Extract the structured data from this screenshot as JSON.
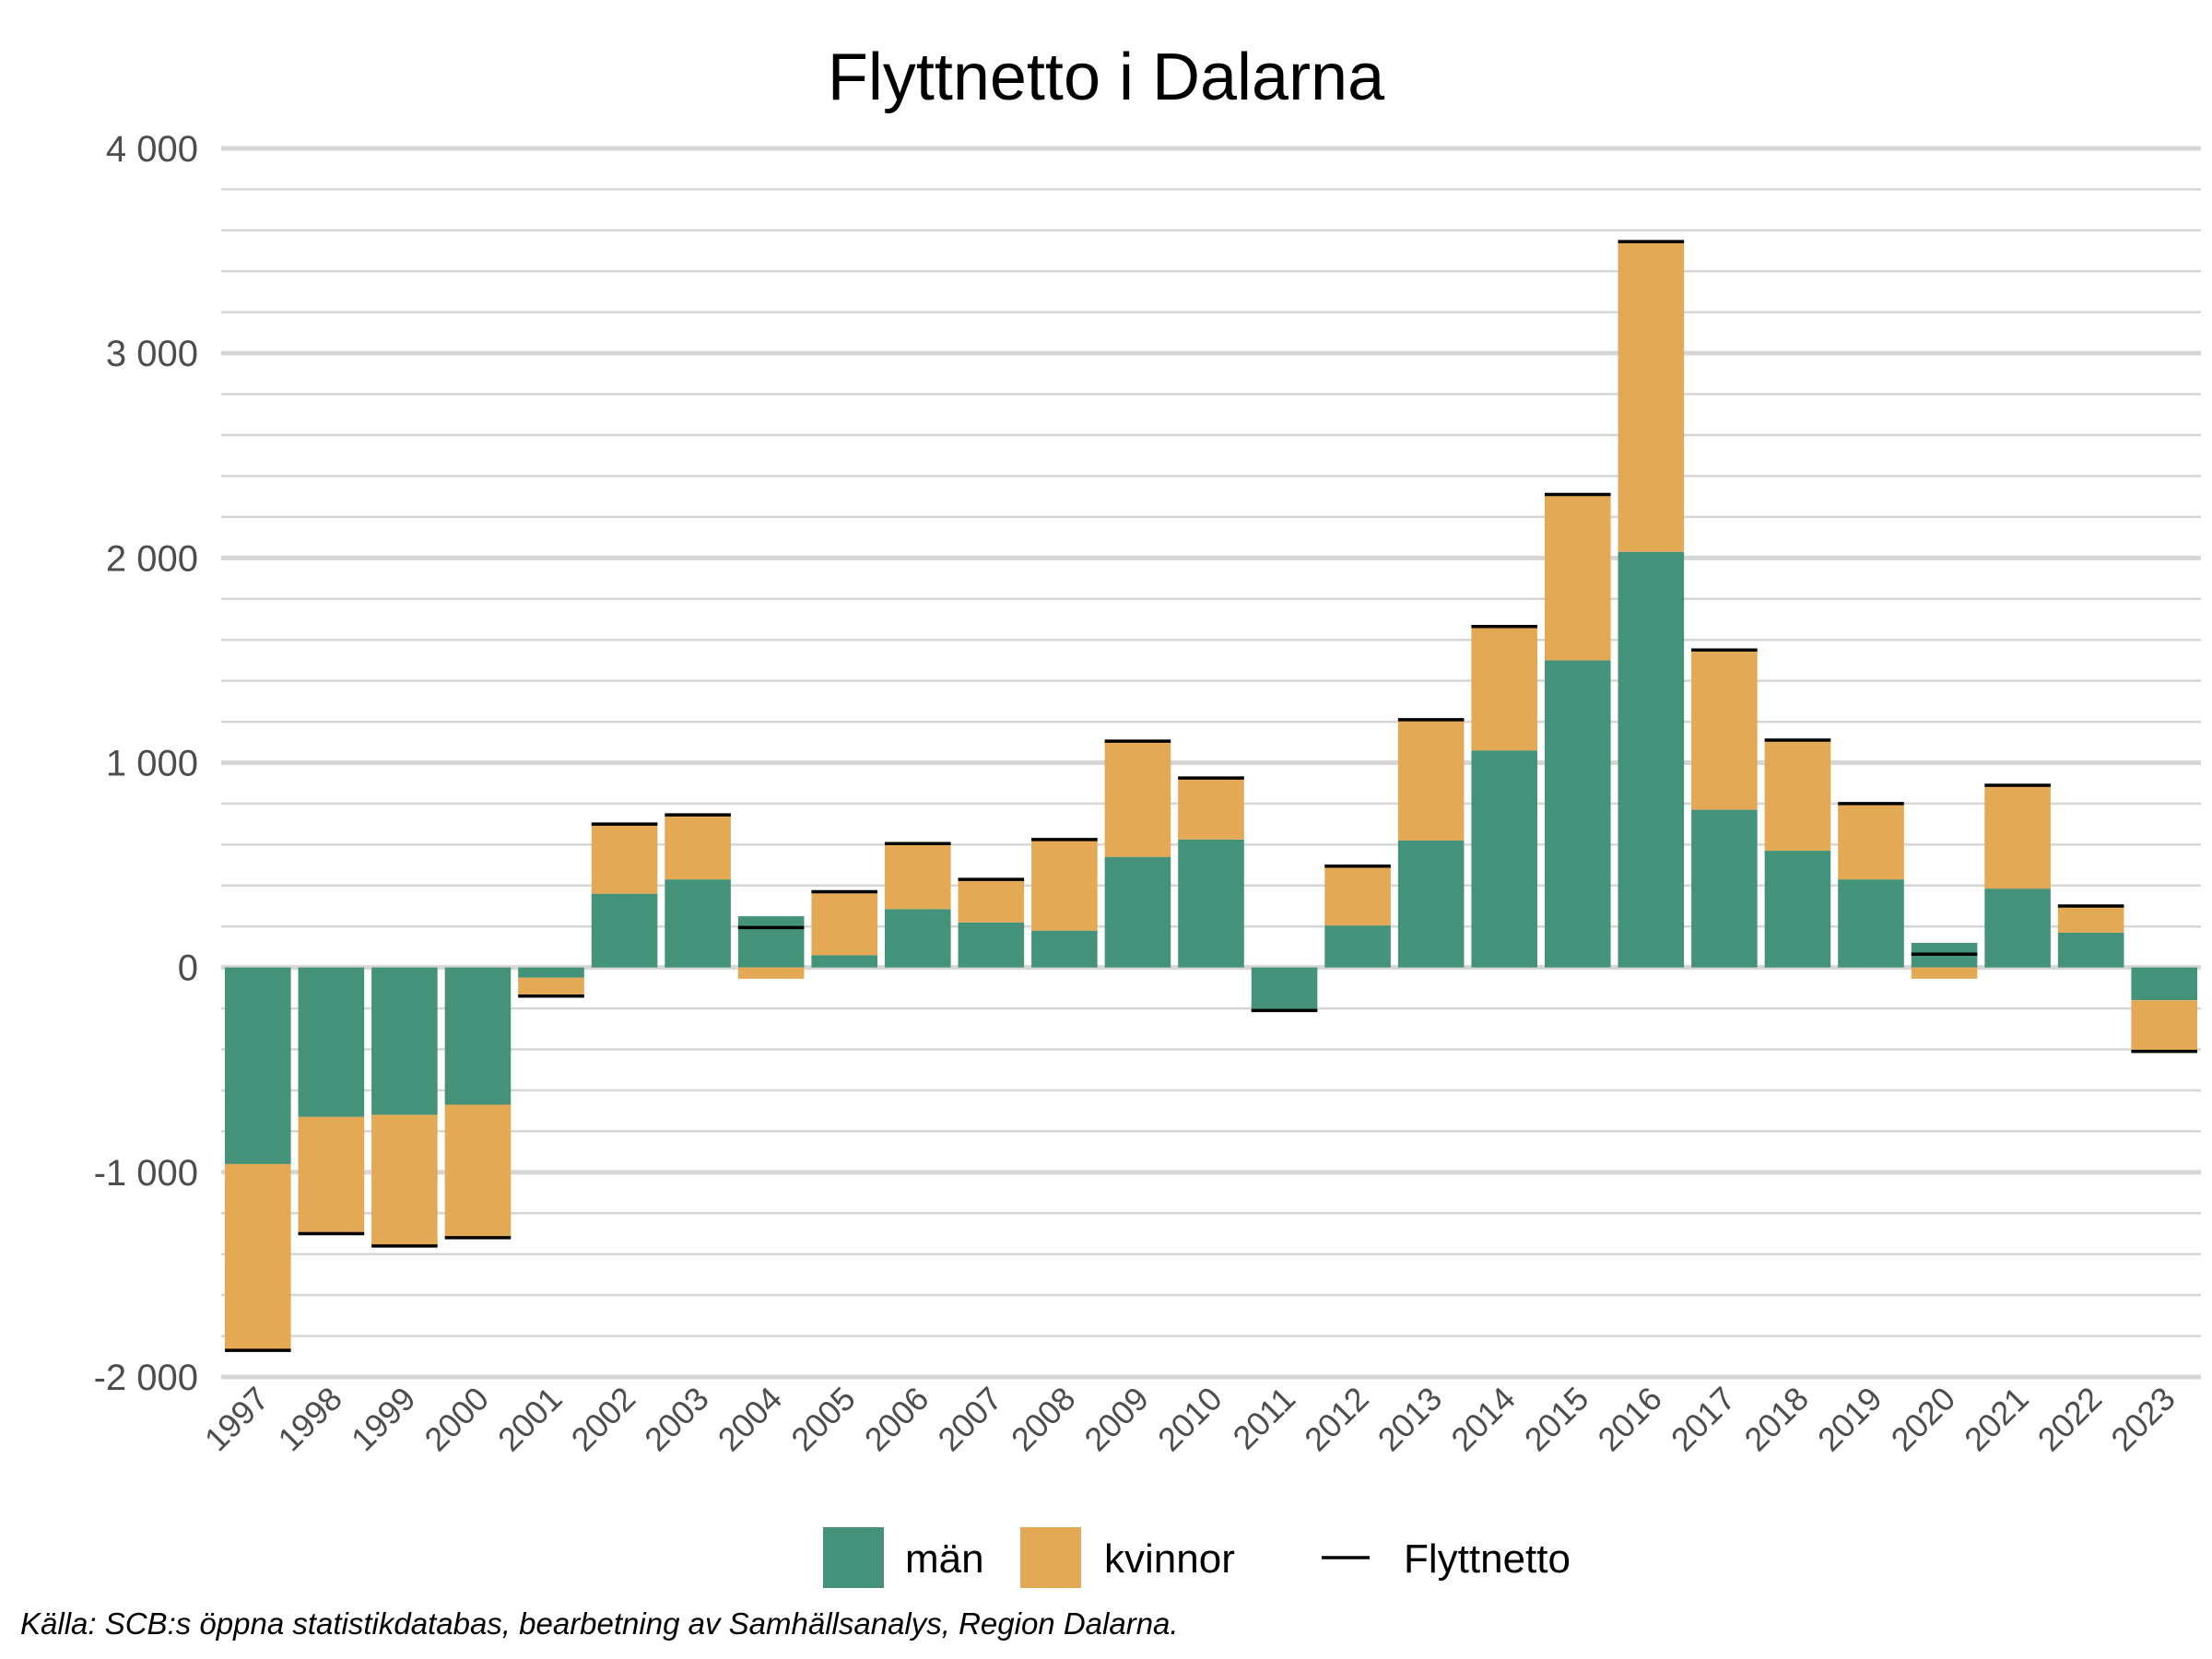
{
  "chart_data": {
    "type": "bar",
    "stacked": true,
    "title": "Flyttnetto i Dalarna",
    "xlabel": "",
    "ylabel": "",
    "ylim": [
      -2000,
      4000
    ],
    "yticks": [
      4000,
      3000,
      2000,
      1000,
      0,
      -1000,
      -2000
    ],
    "ytick_labels": [
      "4 000",
      "3 000",
      "2 000",
      "1 000",
      "0",
      "-1 000",
      "-2 000"
    ],
    "categories": [
      "1997",
      "1998",
      "1999",
      "2000",
      "2001",
      "2002",
      "2003",
      "2004",
      "2005",
      "2006",
      "2007",
      "2008",
      "2009",
      "2010",
      "2011",
      "2012",
      "2013",
      "2014",
      "2015",
      "2016",
      "2017",
      "2018",
      "2019",
      "2020",
      "2021",
      "2022",
      "2023"
    ],
    "series": [
      {
        "name": "män",
        "color": "#45927a",
        "values": [
          -960,
          -730,
          -720,
          -670,
          -50,
          360,
          430,
          250,
          60,
          285,
          220,
          180,
          540,
          625,
          -210,
          205,
          620,
          1060,
          1500,
          2030,
          770,
          570,
          430,
          120,
          385,
          170,
          -160
        ]
      },
      {
        "name": "kvinnor",
        "color": "#e3a955",
        "values": [
          -910,
          -570,
          -640,
          -650,
          -90,
          340,
          315,
          -55,
          310,
          320,
          210,
          445,
          565,
          300,
          0,
          290,
          590,
          605,
          810,
          1515,
          780,
          540,
          370,
          -55,
          505,
          130,
          -250
        ]
      }
    ],
    "line_series": {
      "name": "Flyttnetto",
      "color": "#000000",
      "values": [
        -1870,
        -1300,
        -1360,
        -1320,
        -140,
        700,
        745,
        195,
        370,
        605,
        430,
        625,
        1105,
        925,
        -210,
        495,
        1210,
        1665,
        2310,
        3545,
        1550,
        1110,
        800,
        65,
        890,
        300,
        -410
      ]
    },
    "grid": true,
    "legend_position": "bottom",
    "caption": "Källa: SCB:s öppna statistikdatabas, bearbetning av Samhällsanalys, Region Dalarna."
  }
}
